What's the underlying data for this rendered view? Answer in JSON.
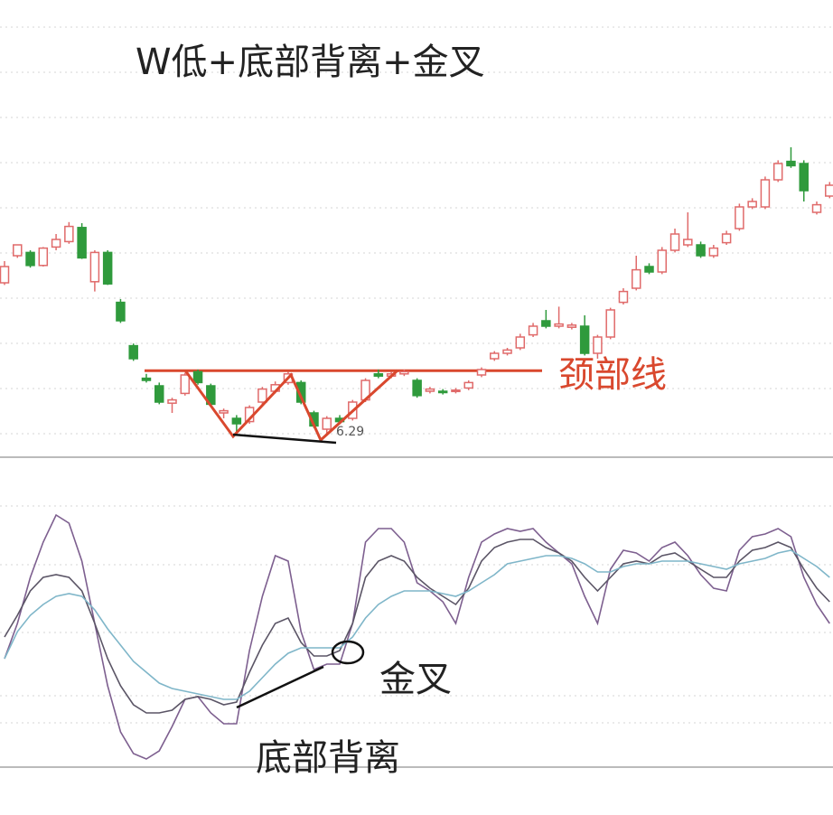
{
  "chart_data": [
    {
      "type": "candlestick",
      "title": "W低+底部背离+金叉",
      "neckline_label": "颈部线",
      "neckline": 6.89,
      "low_value": 6.29,
      "ylim": [
        6.1,
        9.1
      ],
      "up_color": "#e06a6a",
      "down_color": "#2f9a3c",
      "open": [
        7.7,
        7.95,
        7.98,
        7.86,
        8.03,
        8.08,
        8.21,
        7.71,
        7.98,
        7.52,
        7.12,
        6.82,
        6.75,
        6.59,
        6.68,
        6.88,
        6.75,
        6.5,
        6.45,
        6.42,
        6.6,
        6.7,
        6.78,
        6.78,
        6.5,
        6.35,
        6.45,
        6.45,
        6.62,
        6.86,
        6.84,
        6.86,
        6.8,
        6.7,
        6.7,
        6.7,
        6.73,
        6.85,
        7.0,
        7.05,
        7.1,
        7.22,
        7.35,
        7.3,
        7.29,
        7.3,
        7.05,
        7.2,
        7.52,
        7.65,
        7.85,
        7.8,
        8.0,
        8.05,
        8.05,
        7.95,
        8.07,
        8.2,
        8.4,
        8.4,
        8.65,
        8.82,
        8.8,
        8.35,
        8.5
      ],
      "high": [
        7.9,
        8.05,
        8.0,
        8.03,
        8.15,
        8.26,
        8.25,
        8.0,
        8.0,
        7.55,
        7.14,
        6.86,
        6.78,
        6.64,
        6.87,
        6.9,
        6.77,
        6.54,
        6.48,
        6.57,
        6.74,
        6.79,
        6.88,
        6.8,
        6.52,
        6.47,
        6.48,
        6.62,
        6.82,
        6.9,
        6.88,
        6.9,
        6.82,
        6.74,
        6.72,
        6.73,
        6.8,
        6.92,
        7.07,
        7.1,
        7.23,
        7.33,
        7.45,
        7.48,
        7.33,
        7.4,
        7.22,
        7.47,
        7.65,
        7.95,
        7.88,
        8.03,
        8.2,
        8.35,
        8.08,
        8.05,
        8.18,
        8.43,
        8.48,
        8.68,
        8.83,
        8.95,
        8.83,
        8.45,
        8.63
      ],
      "low": [
        7.68,
        7.93,
        7.84,
        7.85,
        8.0,
        8.06,
        7.92,
        7.62,
        7.68,
        7.33,
        6.98,
        6.78,
        6.58,
        6.5,
        6.66,
        6.76,
        6.56,
        6.45,
        6.3,
        6.4,
        6.58,
        6.68,
        6.76,
        6.58,
        6.36,
        6.29,
        6.4,
        6.43,
        6.6,
        6.82,
        6.82,
        6.84,
        6.64,
        6.68,
        6.67,
        6.68,
        6.71,
        6.83,
        6.98,
        7.03,
        7.08,
        7.2,
        7.28,
        7.28,
        7.27,
        7.03,
        7.0,
        7.18,
        7.5,
        7.63,
        7.78,
        7.78,
        7.98,
        8.03,
        7.93,
        7.93,
        8.05,
        8.18,
        8.38,
        8.38,
        8.63,
        8.76,
        8.45,
        8.33,
        8.48
      ],
      "close": [
        7.85,
        8.05,
        7.86,
        8.02,
        8.1,
        8.22,
        7.93,
        7.98,
        7.69,
        7.35,
        7.0,
        6.8,
        6.6,
        6.62,
        6.85,
        6.78,
        6.58,
        6.52,
        6.4,
        6.55,
        6.72,
        6.76,
        6.86,
        6.6,
        6.38,
        6.45,
        6.42,
        6.6,
        6.8,
        6.84,
        6.86,
        6.88,
        6.66,
        6.72,
        6.69,
        6.71,
        6.78,
        6.9,
        7.05,
        7.08,
        7.2,
        7.3,
        7.3,
        7.32,
        7.31,
        7.05,
        7.2,
        7.45,
        7.62,
        7.82,
        7.8,
        8.0,
        8.15,
        8.1,
        7.95,
        8.02,
        8.15,
        8.4,
        8.45,
        8.65,
        8.8,
        8.78,
        8.55,
        8.42,
        8.6
      ]
    },
    {
      "type": "line",
      "title": "金叉",
      "subtitle": "底部背离",
      "ylim": [
        0,
        100
      ],
      "series": [
        {
          "color": "#7d5f8f",
          "values": [
            37,
            50,
            67,
            80,
            90,
            87,
            73,
            50,
            27,
            10,
            2,
            0,
            3,
            12,
            22,
            23,
            17,
            13,
            13,
            40,
            60,
            75,
            73,
            47,
            33,
            35,
            35,
            50,
            80,
            85,
            85,
            80,
            65,
            62,
            58,
            50,
            67,
            80,
            83,
            85,
            84,
            85,
            80,
            76,
            72,
            60,
            50,
            70,
            77,
            76,
            73,
            78,
            80,
            75,
            68,
            63,
            62,
            77,
            82,
            83,
            85,
            82,
            67,
            57,
            50
          ]
        },
        {
          "color": "#5b5566",
          "values": [
            45,
            53,
            62,
            67,
            68,
            67,
            62,
            50,
            37,
            27,
            20,
            17,
            17,
            18,
            22,
            23,
            22,
            20,
            21,
            32,
            42,
            50,
            52,
            43,
            38,
            38,
            40,
            50,
            67,
            73,
            75,
            73,
            67,
            63,
            60,
            57,
            63,
            73,
            78,
            80,
            81,
            81,
            78,
            76,
            73,
            67,
            62,
            67,
            72,
            73,
            72,
            75,
            76,
            73,
            70,
            67,
            67,
            73,
            77,
            78,
            80,
            78,
            70,
            63,
            58
          ]
        },
        {
          "color": "#7fb6c9",
          "values": [
            37,
            47,
            53,
            57,
            60,
            61,
            60,
            55,
            48,
            42,
            36,
            32,
            28,
            26,
            25,
            24,
            23,
            22,
            22,
            25,
            30,
            35,
            39,
            41,
            41,
            41,
            41,
            45,
            52,
            57,
            60,
            62,
            62,
            62,
            61,
            60,
            62,
            65,
            68,
            72,
            73,
            74,
            75,
            75,
            74,
            72,
            69,
            69,
            71,
            72,
            72,
            73,
            73,
            73,
            72,
            71,
            70,
            72,
            73,
            74,
            76,
            77,
            74,
            71,
            67
          ]
        }
      ]
    }
  ]
}
